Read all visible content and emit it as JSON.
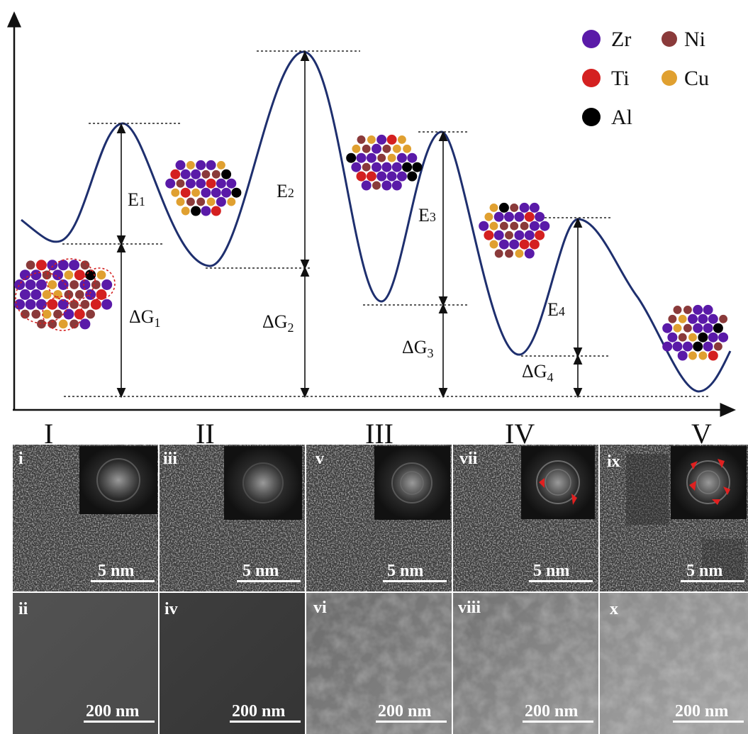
{
  "energy_labels": {
    "e1": "E",
    "e1_sub": "1",
    "e2": "E",
    "e2_sub": "2",
    "e3": "E",
    "e3_sub": "3",
    "e4": "E",
    "e4_sub": "4",
    "g1": "ΔG",
    "g1_sub": "1",
    "g2": "ΔG",
    "g2_sub": "2",
    "g3": "ΔG",
    "g3_sub": "3",
    "g4": "ΔG",
    "g4_sub": "4"
  },
  "legend": [
    {
      "label": "Zr",
      "color": "#5a1aa8"
    },
    {
      "label": "Ni",
      "color": "#8a3a3a"
    },
    {
      "label": "Ti",
      "color": "#d42020"
    },
    {
      "label": "Cu",
      "color": "#e0a030"
    },
    {
      "label": "Al",
      "color": "#000000"
    }
  ],
  "stages": [
    "I",
    "II",
    "III",
    "IV",
    "V"
  ],
  "hrtem_panels": [
    {
      "label": "i",
      "scale": "5 nm"
    },
    {
      "label": "iii",
      "scale": "5 nm"
    },
    {
      "label": "v",
      "scale": "5 nm"
    },
    {
      "label": "vii",
      "scale": "5 nm"
    },
    {
      "label": "ix",
      "scale": "5 nm"
    }
  ],
  "sem_panels": [
    {
      "label": "ii",
      "scale": "200 nm"
    },
    {
      "label": "iv",
      "scale": "200 nm"
    },
    {
      "label": "vi",
      "scale": "200 nm"
    },
    {
      "label": "viii",
      "scale": "200 nm"
    },
    {
      "label": "x",
      "scale": "200 nm"
    }
  ]
}
